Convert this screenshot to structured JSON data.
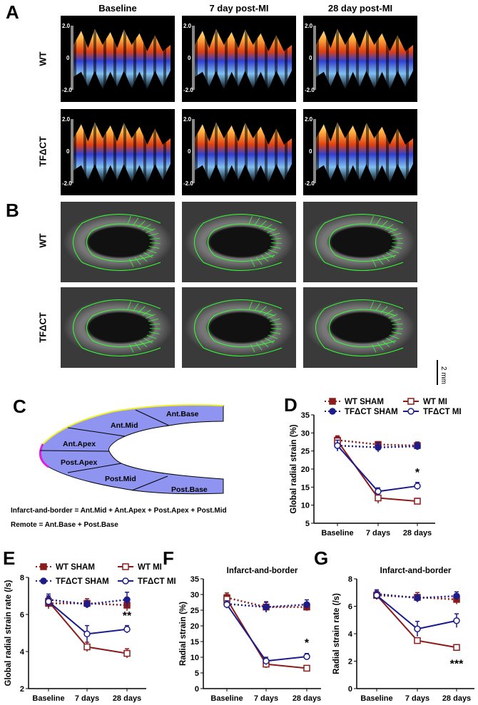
{
  "panels": {
    "A": "A",
    "B": "B",
    "C": "C",
    "D": "D",
    "E": "E",
    "F": "F",
    "G": "G"
  },
  "columns": [
    "Baseline",
    "7 day post-MI",
    "28 day post-MI"
  ],
  "rows": [
    "WT",
    "TFΔCT"
  ],
  "strain_scale": {
    "top": "2.0",
    "mid": "0",
    "bottom": "-2.0"
  },
  "scale_bar": "2 mm",
  "segments": [
    "Ant.Base",
    "Ant.Mid",
    "Ant.Apex",
    "Post.Apex",
    "Post.Mid",
    "Post.Base"
  ],
  "segment_colors": {
    "fill": "#8f94f0",
    "apex": "#e020e0",
    "mid": "#f0f020",
    "base_ant": "#2090e0",
    "base_post": "#20e020",
    "apex_post": "#20e0e0"
  },
  "definitions": [
    "Infarct-and-border = Ant.Mid + Ant.Apex + Post.Apex + Post.Mid",
    "Remote = Ant.Base + Post.Base"
  ],
  "colors": {
    "wt": "#8b1c1c",
    "tf": "#1c1c8b"
  },
  "chart_data": [
    {
      "id": "D",
      "type": "line",
      "title": "",
      "ylabel": "Global radial strain (%)",
      "categories": [
        "Baseline",
        "7 days",
        "28 days"
      ],
      "ylim": [
        5,
        35
      ],
      "yticks": [
        "5",
        "10",
        "15",
        "20",
        "25",
        "30",
        "35"
      ],
      "legend": [
        "WT SHAM",
        "TFΔCT SHAM",
        "WT MI",
        "TFΔCT MI"
      ],
      "legend_placement": "top",
      "series": [
        {
          "name": "WT SHAM",
          "values": [
            28,
            26.8,
            26.5
          ],
          "err": [
            1.2,
            0.8,
            1.0
          ]
        },
        {
          "name": "TFΔCT SHAM",
          "values": [
            26.5,
            26,
            26.3
          ],
          "err": [
            1.5,
            1.3,
            1.0
          ]
        },
        {
          "name": "WT MI",
          "values": [
            27.8,
            12,
            11.1
          ],
          "err": [
            1.2,
            1.5,
            0.8
          ]
        },
        {
          "name": "TFΔCT MI",
          "values": [
            26.5,
            13.8,
            15.3
          ],
          "err": [
            1.5,
            1.0,
            1.0
          ]
        }
      ],
      "annotations": [
        {
          "text": "*",
          "category": "28 days"
        }
      ]
    },
    {
      "id": "E",
      "type": "line",
      "title": "",
      "ylabel": "Global radial strain rate (/s)",
      "categories": [
        "Baseline",
        "7 days",
        "28 days"
      ],
      "ylim": [
        2,
        8
      ],
      "yticks": [
        "2",
        "4",
        "6",
        "8"
      ],
      "legend": [
        "WT SHAM",
        "TFΔCT SHAM",
        "WT MI",
        "TFΔCT MI"
      ],
      "legend_placement": "top",
      "series": [
        {
          "name": "WT SHAM",
          "values": [
            6.6,
            6.6,
            6.5
          ],
          "err": [
            0.3,
            0.25,
            0.3
          ]
        },
        {
          "name": "TFΔCT SHAM",
          "values": [
            6.8,
            6.55,
            6.8
          ],
          "err": [
            0.3,
            0.2,
            0.4
          ]
        },
        {
          "name": "WT MI",
          "values": [
            6.7,
            4.25,
            3.9
          ],
          "err": [
            0.3,
            0.25,
            0.25
          ]
        },
        {
          "name": "TFΔCT MI",
          "values": [
            6.7,
            4.95,
            5.2
          ],
          "err": [
            0.3,
            0.45,
            0.2
          ]
        }
      ],
      "annotations": [
        {
          "text": "**",
          "category": "28 days"
        }
      ]
    },
    {
      "id": "F",
      "type": "line",
      "title": "Infarct-and-border",
      "ylabel": "Radial strain (%)",
      "categories": [
        "Baseline",
        "7 days",
        "28 days"
      ],
      "ylim": [
        0,
        35
      ],
      "yticks": [
        "0",
        "5",
        "10",
        "15",
        "20",
        "25",
        "30",
        "35"
      ],
      "series": [
        {
          "name": "WT SHAM",
          "values": [
            29,
            26,
            26
          ],
          "err": [
            1.5,
            1.5,
            1.2
          ]
        },
        {
          "name": "TFΔCT SHAM",
          "values": [
            27,
            26,
            26.8
          ],
          "err": [
            1.2,
            1.7,
            1.5
          ]
        },
        {
          "name": "WT MI",
          "values": [
            28.5,
            7.8,
            6.5
          ],
          "err": [
            1.5,
            1.2,
            0.6
          ]
        },
        {
          "name": "TFΔCT MI",
          "values": [
            26.8,
            8.8,
            10.2
          ],
          "err": [
            1.2,
            1.2,
            1.0
          ]
        }
      ],
      "annotations": [
        {
          "text": "*",
          "category": "28 days"
        }
      ]
    },
    {
      "id": "G",
      "type": "line",
      "title": "Infarct-and-border",
      "ylabel": "Radial strain rate (/s)",
      "categories": [
        "Baseline",
        "7 days",
        "28 days"
      ],
      "ylim": [
        0,
        8
      ],
      "yticks": [
        "0",
        "2",
        "4",
        "6",
        "8"
      ],
      "series": [
        {
          "name": "WT SHAM",
          "values": [
            6.8,
            6.65,
            6.5
          ],
          "err": [
            0.3,
            0.35,
            0.35
          ]
        },
        {
          "name": "TFΔCT SHAM",
          "values": [
            6.9,
            6.6,
            6.75
          ],
          "err": [
            0.3,
            0.25,
            0.3
          ]
        },
        {
          "name": "WT MI",
          "values": [
            6.8,
            3.5,
            3.0
          ],
          "err": [
            0.3,
            0.2,
            0.15
          ]
        },
        {
          "name": "TFΔCT MI",
          "values": [
            6.8,
            4.35,
            4.95
          ],
          "err": [
            0.3,
            0.55,
            0.5
          ]
        }
      ],
      "annotations": [
        {
          "text": "***",
          "category": "28 days",
          "below": true
        }
      ]
    }
  ]
}
